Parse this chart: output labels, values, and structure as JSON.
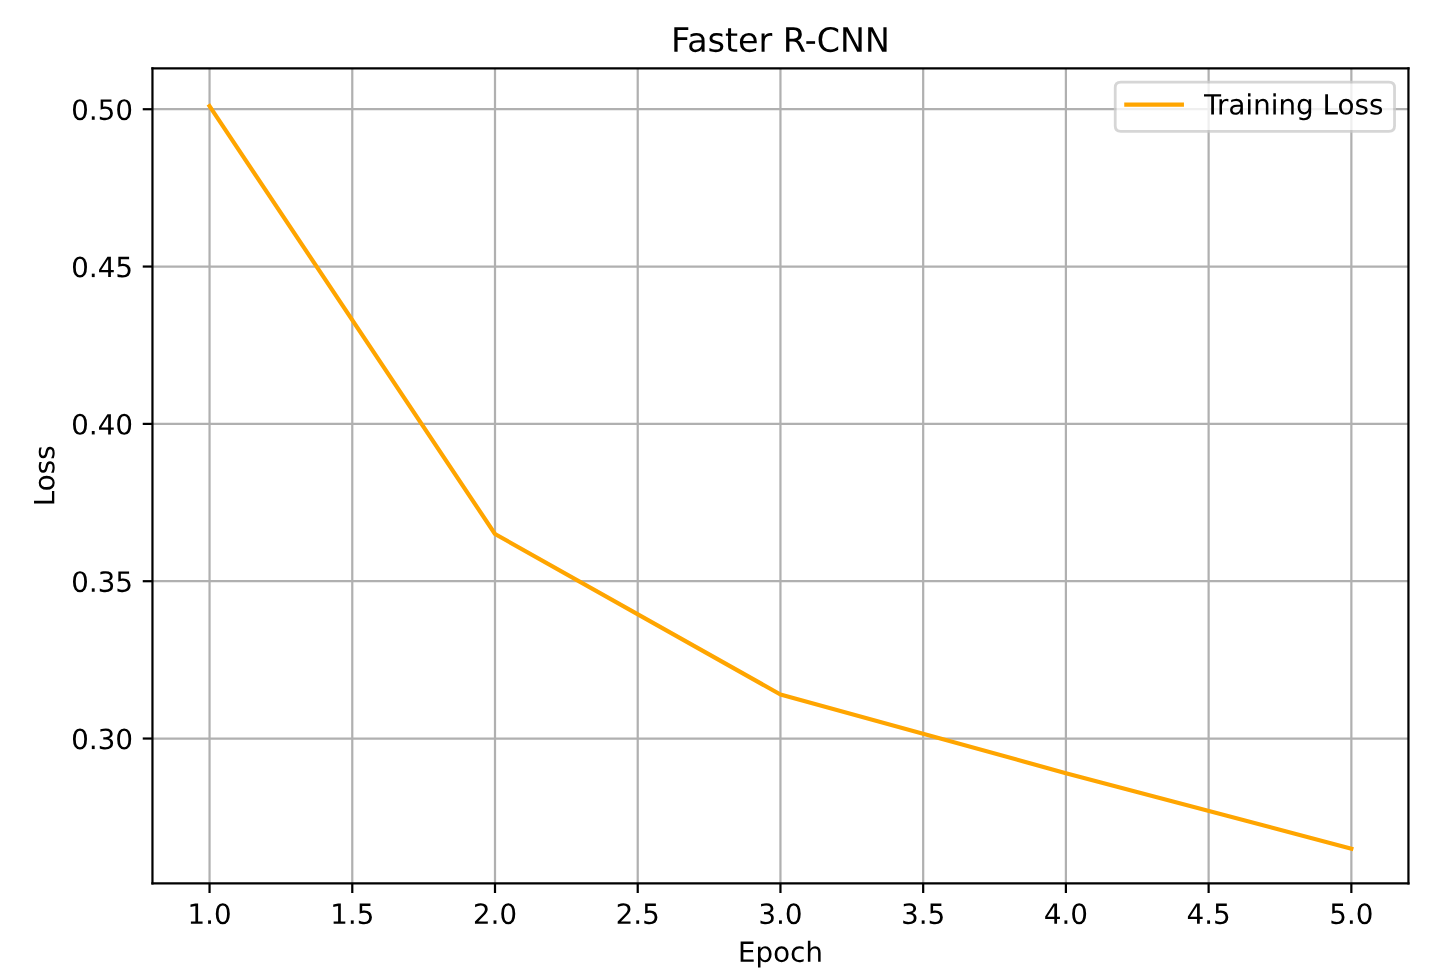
{
  "chart_data": {
    "type": "line",
    "title": "Faster R-CNN",
    "xlabel": "Epoch",
    "ylabel": "Loss",
    "x": [
      1,
      2,
      3,
      4,
      5
    ],
    "series": [
      {
        "name": "Training Loss",
        "color": "#ffa500",
        "values": [
          0.501,
          0.365,
          0.314,
          0.289,
          0.265
        ]
      }
    ],
    "xlim": [
      0.8,
      5.2
    ],
    "ylim": [
      0.254,
      0.513
    ],
    "xticks": [
      {
        "value": 1,
        "label": "1.0"
      },
      1.5,
      {
        "value": 2,
        "label": "2.0"
      },
      2.5,
      {
        "value": 3,
        "label": "3.0"
      },
      3.5,
      {
        "value": 4,
        "label": "4.0"
      },
      4.5,
      {
        "value": 5,
        "label": "5.0"
      }
    ],
    "yticks": [
      {
        "value": 0.3,
        "label": "0.30"
      },
      0.35,
      {
        "value": 0.4,
        "label": "0.40"
      },
      0.45,
      {
        "value": 0.5,
        "label": "0.50"
      }
    ],
    "grid": true,
    "legend": "top right",
    "marker": "none",
    "line_style": "solid"
  }
}
